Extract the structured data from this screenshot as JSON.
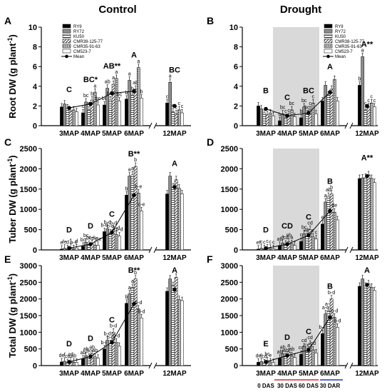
{
  "column_titles": [
    "Control",
    "Drought"
  ],
  "series_names": [
    "RY9",
    "RY72",
    "KU50",
    "CMR38-125-77",
    "CMR35-91-63",
    "CM523-7",
    "Mean"
  ],
  "x_tick_labels": [
    "3MAP",
    "4MAP",
    "5MAP",
    "6MAP",
    "12MAP"
  ],
  "drought_phase_labels": [
    "0 DAS",
    "30 DAS",
    "60 DAS",
    "30 DAR"
  ],
  "phase_colors": {
    "stress": "#d32f2f",
    "recovery": "#1a3fb0",
    "shade": "#d9d9d9"
  },
  "chart_data": [
    {
      "panel": "A",
      "type": "bar",
      "ylabel": "Root DW (g plant-1)",
      "ylim": [
        0,
        10
      ],
      "yticks": [
        0,
        2,
        4,
        6,
        8,
        10
      ],
      "categories": [
        "3MAP",
        "4MAP",
        "5MAP",
        "6MAP",
        "12MAP"
      ],
      "series": [
        {
          "name": "RY9",
          "values": [
            1.9,
            1.3,
            2.1,
            2.7,
            2.3
          ]
        },
        {
          "name": "RY72",
          "values": [
            2.2,
            2.4,
            3.8,
            4.6,
            4.4
          ]
        },
        {
          "name": "KU50",
          "values": [
            1.8,
            1.6,
            2.6,
            3.1,
            1.4
          ]
        },
        {
          "name": "CMR38-125-77",
          "values": [
            1.5,
            2.6,
            4.2,
            3.7,
            1.2
          ]
        },
        {
          "name": "CMR35-91-63",
          "values": [
            1.6,
            3.4,
            4.8,
            5.9,
            1.6
          ]
        },
        {
          "name": "CM523-7",
          "values": [
            1.4,
            2.1,
            2.5,
            2.8,
            1.3
          ]
        },
        {
          "name": "Mean",
          "values": [
            1.8,
            2.2,
            3.3,
            3.5,
            2.0
          ]
        }
      ],
      "mean_letters": [
        "C",
        "BC*",
        "AB**",
        "A",
        "BC"
      ],
      "bar_letters": [
        [
          "",
          "",
          "",
          "",
          "",
          ""
        ],
        [
          "c",
          "bc",
          "c",
          "b",
          "a",
          "bc"
        ],
        [
          "bc",
          "ab",
          "b-d",
          "a",
          "a",
          "bc"
        ],
        [
          "b",
          "a",
          "b",
          "ab",
          "a",
          "b"
        ],
        [
          "c",
          "a",
          "c",
          "c",
          "c",
          "c"
        ]
      ]
    },
    {
      "panel": "B",
      "type": "bar",
      "ylabel": "",
      "ylim": [
        0,
        10
      ],
      "yticks": [
        0,
        2,
        4,
        6,
        8,
        10
      ],
      "categories": [
        "3MAP",
        "4MAP",
        "5MAP",
        "6MAP",
        "12MAP"
      ],
      "series": [
        {
          "name": "RY9",
          "values": [
            2.0,
            0.5,
            0.8,
            2.5,
            4.1
          ]
        },
        {
          "name": "RY72",
          "values": [
            1.7,
            1.2,
            1.9,
            4.1,
            7.0
          ]
        },
        {
          "name": "KU50",
          "values": [
            1.3,
            0.8,
            1.2,
            3.1,
            1.6
          ]
        },
        {
          "name": "CMR38-125-77",
          "values": [
            1.1,
            0.9,
            1.6,
            3.7,
            1.9
          ]
        },
        {
          "name": "CMR35-91-63",
          "values": [
            1.3,
            1.6,
            2.3,
            4.7,
            2.3
          ]
        },
        {
          "name": "CM523-7",
          "values": [
            1.0,
            0.9,
            1.2,
            2.5,
            1.9
          ]
        },
        {
          "name": "Mean",
          "values": [
            1.7,
            1.0,
            1.3,
            3.4,
            2.0
          ]
        }
      ],
      "mean_letters": [
        "B",
        "C",
        "BC",
        "A",
        "A**"
      ],
      "bar_letters": [
        [
          "",
          "",
          "",
          "",
          "",
          ""
        ],
        [
          "b",
          "bc",
          "c",
          "c",
          "bc",
          ""
        ],
        [
          "b",
          "bc",
          "bc",
          "c",
          "c",
          ""
        ],
        [
          "",
          "",
          "",
          "",
          "",
          ""
        ],
        [
          "b",
          "a",
          "c",
          "c",
          "c",
          "c"
        ]
      ]
    },
    {
      "panel": "C",
      "type": "bar",
      "ylabel": "Tuber DW (g plant-1)",
      "ylim": [
        0,
        2500
      ],
      "yticks": [
        0,
        500,
        1000,
        1500,
        2000,
        2500
      ],
      "categories": [
        "3MAP",
        "4MAP",
        "5MAP",
        "6MAP",
        "12MAP"
      ],
      "series": [
        {
          "name": "RY9",
          "values": [
            20,
            90,
            450,
            1350,
            1380
          ]
        },
        {
          "name": "RY72",
          "values": [
            40,
            190,
            520,
            1820,
            1820
          ]
        },
        {
          "name": "KU50",
          "values": [
            30,
            130,
            420,
            1850,
            1550
          ]
        },
        {
          "name": "CMR38-125-77",
          "values": [
            60,
            150,
            500,
            2060,
            1730
          ]
        },
        {
          "name": "CMR35-91-63",
          "values": [
            30,
            120,
            380,
            1400,
            1520
          ]
        },
        {
          "name": "CM523-7",
          "values": [
            50,
            110,
            340,
            960,
            1380
          ]
        },
        {
          "name": "Mean",
          "values": [
            45,
            140,
            430,
            1350,
            1550
          ]
        }
      ],
      "mean_letters": [
        "D",
        "D",
        "C",
        "B**",
        "A"
      ],
      "bar_letters": [
        [
          "e",
          "fe",
          "d",
          "f",
          "a-c",
          "d"
        ],
        [
          "bc",
          "bc",
          "bc",
          "c-e",
          "c-e",
          "c-e"
        ],
        [
          "b-d",
          "b-d",
          "b-d",
          "b-d",
          "b-d",
          "b-d"
        ],
        [
          "b",
          "a",
          "a",
          "b",
          "b-e",
          "c-e"
        ],
        [
          "",
          "",
          "",
          "",
          "",
          ""
        ]
      ]
    },
    {
      "panel": "D",
      "type": "bar",
      "ylabel": "",
      "ylim": [
        0,
        2500
      ],
      "yticks": [
        0,
        500,
        1000,
        1500,
        2000,
        2500
      ],
      "categories": [
        "3MAP",
        "4MAP",
        "5MAP",
        "6MAP",
        "12MAP"
      ],
      "series": [
        {
          "name": "RY9",
          "values": [
            20,
            110,
            210,
            640,
            1760
          ]
        },
        {
          "name": "RY72",
          "values": [
            40,
            170,
            400,
            1180,
            1770
          ]
        },
        {
          "name": "KU50",
          "values": [
            30,
            140,
            330,
            1320,
            1790
          ]
        },
        {
          "name": "CMR38-125-77",
          "values": [
            50,
            200,
            500,
            1380,
            1850
          ]
        },
        {
          "name": "CMR35-91-63",
          "values": [
            40,
            150,
            320,
            930,
            1760
          ]
        },
        {
          "name": "CM523-7",
          "values": [
            30,
            110,
            270,
            740,
            1660
          ]
        },
        {
          "name": "Mean",
          "values": [
            40,
            140,
            360,
            960,
            1820
          ]
        }
      ],
      "mean_letters": [
        "D",
        "CD",
        "C",
        "B",
        "A**"
      ],
      "bar_letters": [
        [
          "ef",
          "c",
          "c",
          "c",
          "c",
          "c"
        ],
        [
          "ab",
          "a",
          "cd",
          "ab",
          "a",
          ""
        ],
        [
          "c",
          "bc",
          "ab",
          "cd",
          "c",
          "c"
        ],
        [
          "e",
          "a",
          "ab",
          "b",
          "de",
          ""
        ],
        [
          "",
          "",
          "",
          "",
          "",
          ""
        ]
      ]
    },
    {
      "panel": "E",
      "type": "bar",
      "ylabel": "Total DW (g plant-1)",
      "ylim": [
        0,
        3000
      ],
      "yticks": [
        0,
        500,
        1000,
        1500,
        2000,
        2500,
        3000
      ],
      "categories": [
        "3MAP",
        "4MAP",
        "5MAP",
        "6MAP",
        "12MAP"
      ],
      "series": [
        {
          "name": "RY9",
          "values": [
            110,
            200,
            500,
            1870,
            2230
          ]
        },
        {
          "name": "RY72",
          "values": [
            130,
            300,
            760,
            2150,
            2600
          ]
        },
        {
          "name": "KU50",
          "values": [
            90,
            250,
            660,
            2340,
            2400
          ]
        },
        {
          "name": "CMR38-125-77",
          "values": [
            140,
            360,
            1000,
            2600,
            2650
          ]
        },
        {
          "name": "CMR35-91-63",
          "values": [
            100,
            260,
            700,
            1700,
            1980
          ]
        },
        {
          "name": "CM523-7",
          "values": [
            100,
            220,
            580,
            1430,
            1950
          ]
        },
        {
          "name": "Mean",
          "values": [
            110,
            270,
            700,
            1850,
            2280
          ]
        }
      ],
      "mean_letters": [
        "D",
        "D",
        "C",
        "B**",
        "A"
      ],
      "bar_letters": [
        [
          "de",
          "f",
          "cd",
          "cd",
          "ab",
          ""
        ],
        [
          "ab",
          "ab",
          "bc",
          "ab",
          "ab",
          ""
        ],
        [
          "b-d",
          "b-d",
          "b-d",
          "b-d",
          "b-d",
          ""
        ],
        [
          "b",
          "a",
          "a",
          "b",
          "b-d",
          "b-d"
        ],
        [
          "",
          "",
          "",
          "",
          "",
          ""
        ]
      ]
    },
    {
      "panel": "F",
      "type": "bar",
      "ylabel": "",
      "ylim": [
        0,
        3000
      ],
      "yticks": [
        0,
        500,
        1000,
        1500,
        2000,
        2500,
        3000
      ],
      "categories": [
        "3MAP",
        "4MAP",
        "5MAP",
        "6MAP",
        "12MAP"
      ],
      "series": [
        {
          "name": "RY9",
          "values": [
            100,
            220,
            340,
            960,
            2380
          ]
        },
        {
          "name": "RY72",
          "values": [
            120,
            360,
            560,
            1550,
            2600
          ]
        },
        {
          "name": "KU50",
          "values": [
            80,
            260,
            420,
            1650,
            2380
          ]
        },
        {
          "name": "CMR38-125-77",
          "values": [
            150,
            410,
            640,
            2000,
            2450
          ]
        },
        {
          "name": "CMR35-91-63",
          "values": [
            110,
            300,
            470,
            1450,
            2350
          ]
        },
        {
          "name": "CM523-7",
          "values": [
            90,
            240,
            380,
            1150,
            2250
          ]
        },
        {
          "name": "Mean",
          "values": [
            110,
            300,
            470,
            1450,
            2420
          ]
        }
      ],
      "mean_letters": [
        "E",
        "D",
        "C",
        "B",
        "A"
      ],
      "bar_letters": [
        [
          "de",
          "e",
          "cd",
          "bc",
          "e",
          ""
        ],
        [
          "ab",
          "ab",
          "ab",
          "a",
          "ab",
          ""
        ],
        [
          "cd",
          "cd",
          "cd",
          "cd",
          "cd",
          ""
        ],
        [
          "b-d",
          "a-c",
          "a-c",
          "b-d",
          "b-d",
          "b-d"
        ],
        [
          "",
          "",
          "",
          "",
          "",
          ""
        ]
      ]
    }
  ]
}
